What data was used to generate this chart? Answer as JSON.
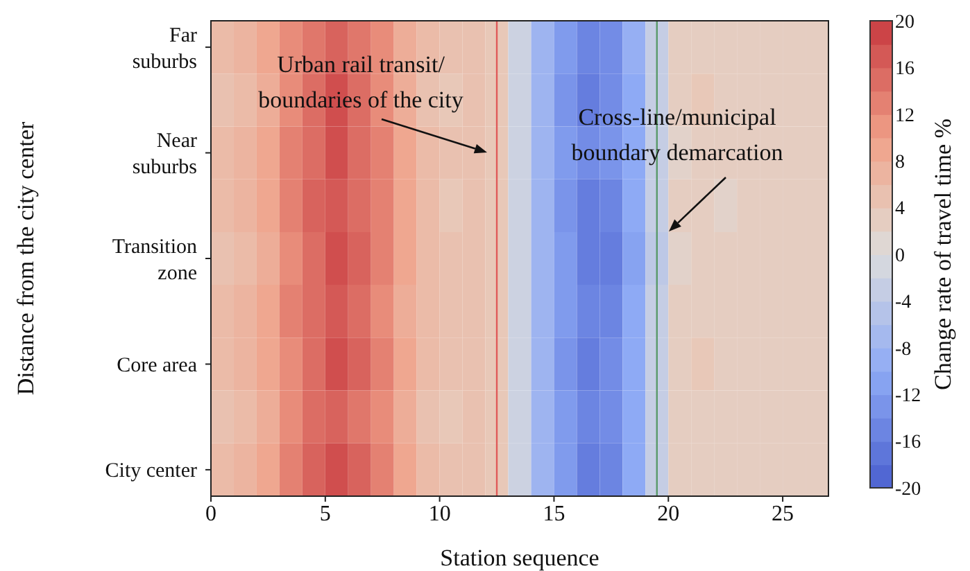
{
  "chart_data": {
    "type": "heatmap",
    "xlabel": "Station sequence",
    "ylabel": "Distance from the city center",
    "clabel": "Change rate of travel time %",
    "x": [
      0.5,
      1.5,
      2.5,
      3.5,
      4.5,
      5.5,
      6.5,
      7.5,
      8.5,
      9.5,
      10.5,
      11.5,
      12.5,
      13.5,
      14.5,
      15.5,
      16.5,
      17.5,
      18.5,
      19.5,
      20.5,
      21.5,
      22.5,
      23.5,
      24.5,
      25.5,
      26.5
    ],
    "xlim": [
      0,
      27
    ],
    "xticks": [
      0,
      5,
      10,
      15,
      20,
      25
    ],
    "y_categories": [
      "Far suburbs",
      null,
      "Near suburbs",
      null,
      "Transition zone",
      null,
      "Core area",
      null,
      "City center"
    ],
    "cells": [
      [
        6,
        7,
        9,
        12,
        14,
        16,
        14,
        12,
        8,
        6,
        5,
        5,
        4,
        -2,
        -8,
        -12,
        -15,
        -14,
        -9,
        -3,
        3,
        3,
        3,
        3,
        3,
        3,
        3
      ],
      [
        5,
        6,
        8,
        12,
        15,
        18,
        15,
        12,
        8,
        5,
        4,
        5,
        4,
        -2,
        -8,
        -13,
        -16,
        -14,
        -10,
        -3,
        3,
        4,
        3,
        3,
        3,
        3,
        3
      ],
      [
        6,
        7,
        9,
        13,
        15,
        18,
        15,
        13,
        9,
        6,
        5,
        5,
        4,
        -2,
        -8,
        -12,
        -14,
        -13,
        -10,
        -3,
        2,
        3,
        3,
        3,
        3,
        3,
        3
      ],
      [
        6,
        7,
        9,
        13,
        16,
        17,
        15,
        13,
        9,
        6,
        4,
        5,
        4,
        -2,
        -8,
        -13,
        -16,
        -15,
        -10,
        -3,
        3,
        3,
        2,
        3,
        3,
        3,
        3
      ],
      [
        5,
        6,
        8,
        12,
        15,
        18,
        16,
        13,
        9,
        6,
        5,
        5,
        4,
        -2,
        -8,
        -12,
        -16,
        -16,
        -11,
        -4,
        2,
        3,
        3,
        3,
        3,
        3,
        3
      ],
      [
        6,
        7,
        9,
        13,
        15,
        17,
        15,
        12,
        8,
        6,
        5,
        5,
        4,
        -2,
        -8,
        -12,
        -15,
        -15,
        -10,
        -3,
        3,
        3,
        3,
        3,
        3,
        3,
        3
      ],
      [
        6,
        7,
        9,
        12,
        15,
        18,
        16,
        13,
        9,
        6,
        5,
        5,
        4,
        -2,
        -8,
        -13,
        -16,
        -14,
        -10,
        -3,
        3,
        4,
        3,
        3,
        3,
        3,
        3
      ],
      [
        5,
        6,
        8,
        12,
        15,
        16,
        14,
        12,
        8,
        5,
        4,
        5,
        4,
        -2,
        -8,
        -12,
        -15,
        -14,
        -10,
        -3,
        3,
        3,
        3,
        3,
        3,
        3,
        3
      ],
      [
        6,
        7,
        9,
        13,
        16,
        18,
        16,
        13,
        9,
        6,
        5,
        5,
        4,
        -2,
        -8,
        -12,
        -16,
        -15,
        -10,
        -3,
        3,
        3,
        3,
        3,
        3,
        3,
        3
      ]
    ],
    "clim": [
      -20,
      20
    ],
    "cticks": [
      -20,
      -16,
      -12,
      -8,
      -4,
      0,
      4,
      8,
      12,
      16,
      20
    ],
    "ref_lines": [
      {
        "axis": "x",
        "value": 12.5,
        "label": "Urban rail transit/ boundaries of the city",
        "color": "#e05a5a"
      },
      {
        "axis": "x",
        "value": 19.5,
        "label": "Cross-line/municipal boundary demarcation",
        "color": "#5a9a6a"
      }
    ]
  }
}
